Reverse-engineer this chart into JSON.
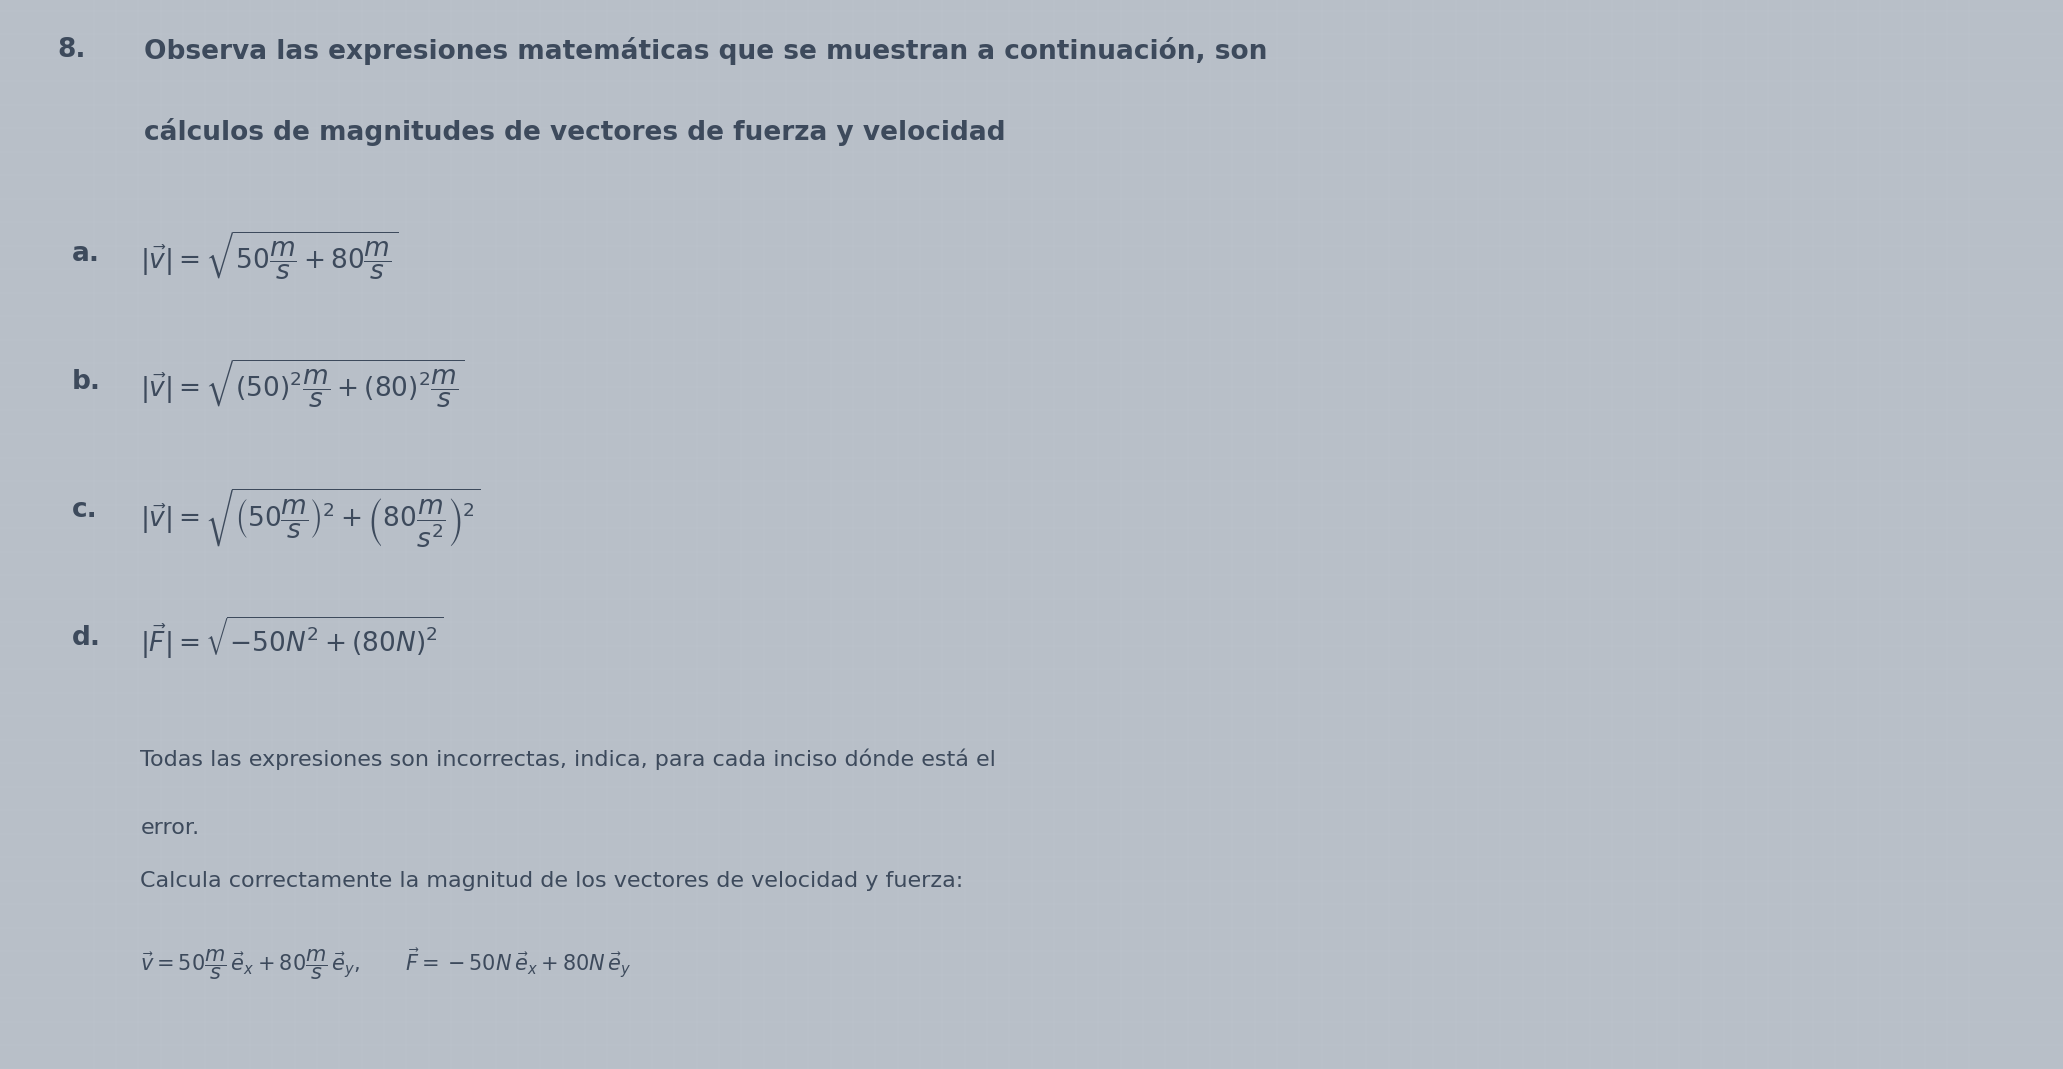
{
  "background_color": "#b8bfc8",
  "text_color": "#3d4a5c",
  "header_number": "8.",
  "header_line1": "Observa las expresiones matemáticas que se muestran a continuación, son",
  "header_line2": "cálculos de magnitudes de vectores de fuerza y velocidad",
  "item_a_label": "a.",
  "item_a_math": "$|\\vec{v}| = \\sqrt{50\\dfrac{m}{s}+80\\dfrac{m}{s}}$",
  "item_b_label": "b.",
  "item_b_math": "$|\\vec{v}| = \\sqrt{(50)^2\\dfrac{m}{s}+(80)^2\\dfrac{m}{s}}$",
  "item_c_label": "c.",
  "item_c_math": "$|\\vec{v}| = \\sqrt{\\left(50\\dfrac{m}{s}\\right)^2+\\left(80\\dfrac{m}{s^2}\\right)^2}$",
  "item_d_label": "d.",
  "item_d_math": "$|\\vec{F}| = \\sqrt{-50N^2+(80N)^2}$",
  "footer_line1": "Todas las expresiones son incorrectas, indica, para cada inciso dónde está el",
  "footer_line2": "error.",
  "footer_line3": "Calcula correctamente la magnitud de los vectores de velocidad y fuerza:",
  "footer_line4": "$\\vec{v} = 50\\dfrac{m}{s}\\,\\vec{e}_x + 80\\dfrac{m}{s}\\,\\vec{e}_y, \\quad\\quad \\vec{F} = -50N\\,\\vec{e}_x + 80N\\,\\vec{e}_y$",
  "font_size_header": 19,
  "font_size_items": 19,
  "font_size_footer": 16,
  "font_size_footer_math": 15
}
